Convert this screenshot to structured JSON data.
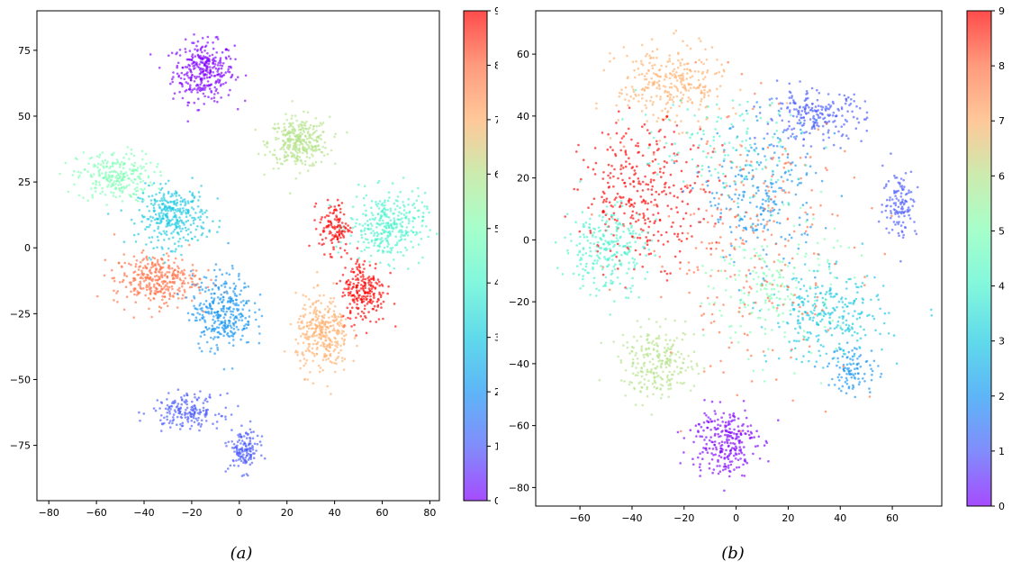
{
  "colors": [
    "#8000ff",
    "#4b5cfa",
    "#1996f3",
    "#1ccae2",
    "#4df3ce",
    "#80ffb4",
    "#b6e38c",
    "#ffb06e",
    "#ff7045",
    "#ff0000"
  ],
  "chart_data": [
    {
      "type": "scatter",
      "caption": "(a)",
      "xlim": [
        -85,
        84
      ],
      "ylim": [
        -96,
        90
      ],
      "xticks": [
        -80,
        -60,
        -40,
        -20,
        0,
        20,
        40,
        60,
        80
      ],
      "xtick_labels": [
        "−80",
        "−60",
        "−40",
        "−20",
        "0",
        "20",
        "40",
        "60",
        "80"
      ],
      "yticks": [
        75,
        50,
        25,
        0,
        -25,
        -50,
        -75
      ],
      "ytick_labels": [
        "75",
        "50",
        "25",
        "0",
        "−25",
        "−50",
        "−75"
      ],
      "colorbar": {
        "range": [
          0,
          9
        ],
        "ticks": [
          "0",
          "1",
          "2",
          "3",
          "4",
          "5",
          "6",
          "7",
          "8",
          "9"
        ]
      },
      "clusters": [
        {
          "label": 0,
          "center": [
            -15,
            67
          ],
          "spread": [
            8,
            7
          ],
          "n": 330
        },
        {
          "label": 6,
          "center": [
            25,
            40
          ],
          "spread": [
            8,
            6
          ],
          "n": 330
        },
        {
          "label": 5,
          "center": [
            -52,
            27
          ],
          "spread": [
            10,
            6
          ],
          "n": 250
        },
        {
          "label": 3,
          "center": [
            -28,
            12
          ],
          "spread": [
            9,
            7
          ],
          "n": 330
        },
        {
          "label": 4,
          "center": [
            62,
            8
          ],
          "spread": [
            10,
            8
          ],
          "n": 330
        },
        {
          "label": 9,
          "center": [
            40,
            8
          ],
          "spread": [
            4,
            6
          ],
          "n": 120
        },
        {
          "label": 9,
          "center": [
            52,
            -16
          ],
          "spread": [
            6,
            8
          ],
          "n": 230
        },
        {
          "label": 8,
          "center": [
            -35,
            -12
          ],
          "spread": [
            11,
            6
          ],
          "n": 330
        },
        {
          "label": 2,
          "center": [
            -7,
            -24
          ],
          "spread": [
            8,
            9
          ],
          "n": 330
        },
        {
          "label": 7,
          "center": [
            35,
            -33
          ],
          "spread": [
            7,
            9
          ],
          "n": 330
        },
        {
          "label": 1,
          "center": [
            -22,
            -62
          ],
          "spread": [
            9,
            4
          ],
          "n": 180
        },
        {
          "label": 1,
          "center": [
            2,
            -77
          ],
          "spread": [
            4,
            5
          ],
          "n": 140
        }
      ]
    },
    {
      "type": "scatter",
      "caption": "(b)",
      "xlim": [
        -77,
        79
      ],
      "ylim": [
        -86,
        74
      ],
      "xticks": [
        -60,
        -40,
        -20,
        0,
        20,
        40,
        60
      ],
      "xtick_labels": [
        "−60",
        "−40",
        "−20",
        "0",
        "20",
        "40",
        "60"
      ],
      "yticks": [
        60,
        40,
        20,
        0,
        -20,
        -40,
        -60,
        -80
      ],
      "ytick_labels": [
        "60",
        "40",
        "20",
        "0",
        "−20",
        "−40",
        "−60",
        "−80"
      ],
      "colorbar": {
        "range": [
          0,
          9
        ],
        "ticks": [
          "0",
          "1",
          "2",
          "3",
          "4",
          "5",
          "6",
          "7",
          "8",
          "9"
        ]
      },
      "clusters": [
        {
          "label": 7,
          "center": [
            -25,
            50
          ],
          "spread": [
            13,
            8
          ],
          "n": 300
        },
        {
          "label": 9,
          "center": [
            -35,
            15
          ],
          "spread": [
            15,
            14
          ],
          "n": 330
        },
        {
          "label": 4,
          "center": [
            -50,
            -3
          ],
          "spread": [
            10,
            9
          ],
          "n": 250
        },
        {
          "label": 1,
          "center": [
            30,
            40
          ],
          "spread": [
            12,
            5
          ],
          "n": 220
        },
        {
          "label": 1,
          "center": [
            63,
            12
          ],
          "spread": [
            4,
            7
          ],
          "n": 120
        },
        {
          "label": 2,
          "center": [
            10,
            15
          ],
          "spread": [
            14,
            14
          ],
          "n": 250
        },
        {
          "label": 3,
          "center": [
            35,
            -25
          ],
          "spread": [
            14,
            9
          ],
          "n": 280
        },
        {
          "label": 2,
          "center": [
            45,
            -42
          ],
          "spread": [
            6,
            5
          ],
          "n": 100
        },
        {
          "label": 6,
          "center": [
            -30,
            -40
          ],
          "spread": [
            9,
            7
          ],
          "n": 250
        },
        {
          "label": 0,
          "center": [
            -5,
            -65
          ],
          "spread": [
            8,
            7
          ],
          "n": 260
        },
        {
          "label": 5,
          "center": [
            15,
            -15
          ],
          "spread": [
            15,
            14
          ],
          "n": 200
        },
        {
          "label": 8,
          "center": [
            5,
            0
          ],
          "spread": [
            25,
            28
          ],
          "n": 260
        },
        {
          "label": 4,
          "center": [
            -5,
            30
          ],
          "spread": [
            20,
            10
          ],
          "n": 120
        }
      ]
    }
  ]
}
